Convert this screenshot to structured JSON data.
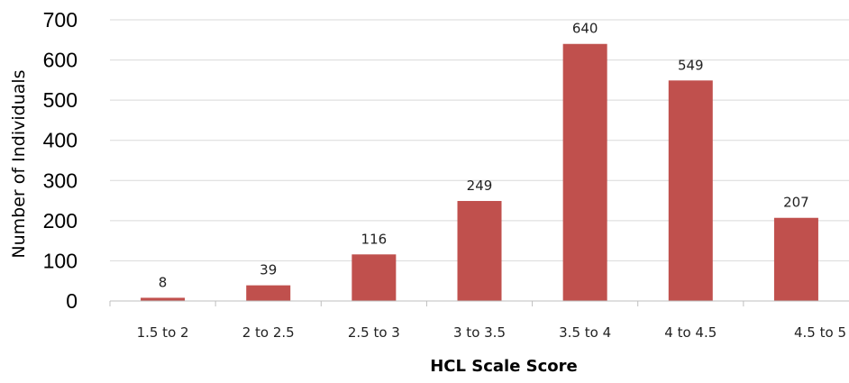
{
  "chart_data": {
    "type": "bar",
    "categories": [
      "1.5 to 2",
      "2 to 2.5",
      "2.5 to 3",
      "3 to 3.5",
      "3.5 to 4",
      "4 to 4.5",
      "4.5 to 5"
    ],
    "values": [
      8,
      39,
      116,
      249,
      640,
      549,
      207
    ],
    "data_labels": [
      "8",
      "39",
      "116",
      "249",
      "640",
      "549",
      "207"
    ],
    "xlabel": "HCL Scale Score",
    "ylabel": "Number of Individuals",
    "ylim": [
      0,
      700
    ],
    "yticks": [
      "0",
      "100",
      "200",
      "300",
      "400",
      "500",
      "600",
      "700"
    ],
    "grid": true,
    "legend": "none",
    "bar_color": "#c0504d",
    "grid_color": "#d9d9d9"
  }
}
